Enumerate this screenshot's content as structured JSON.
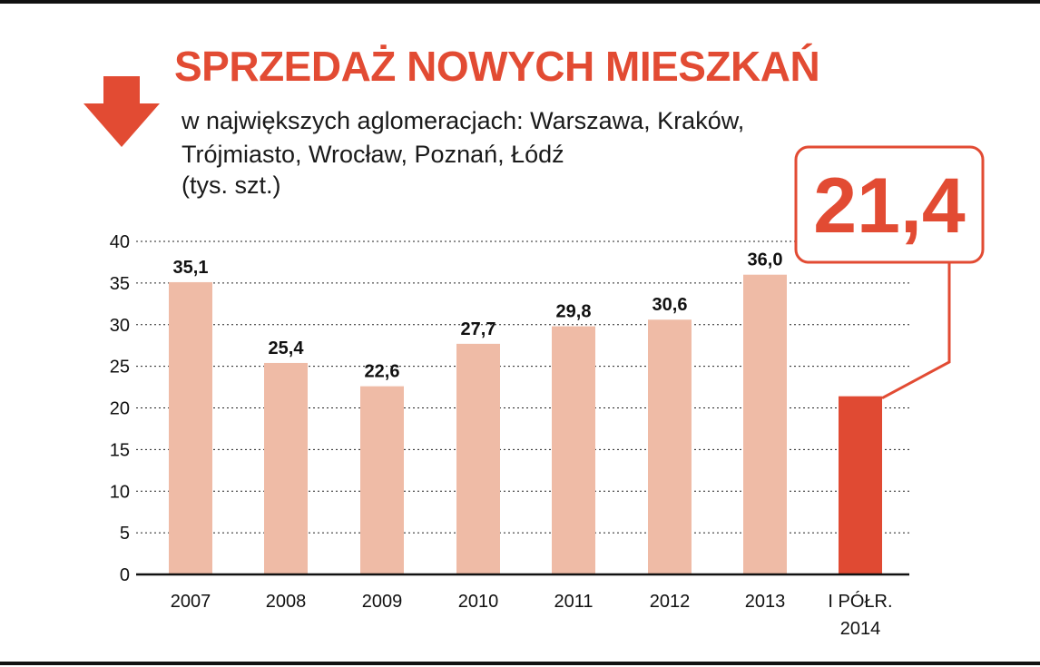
{
  "header": {
    "title": "SPRZEDAŻ NOWYCH MIESZKAŃ",
    "subtitle_lines": [
      "w największych aglomeracjach: Warszawa, Kraków,",
      "Trójmiasto, Wrocław, Poznań, Łódź",
      "(tys. szt.)"
    ],
    "arrow_icon": "arrow-down-icon"
  },
  "colors": {
    "accent": "#e24b33",
    "bar_light": "#efbba6",
    "bar_highlight": "#e04a33",
    "text": "#111111"
  },
  "chart_data": {
    "type": "bar",
    "categories": [
      "2007",
      "2008",
      "2009",
      "2010",
      "2011",
      "2012",
      "2013",
      "I PÓŁR.\n2014"
    ],
    "values": [
      35.1,
      25.4,
      22.6,
      27.7,
      29.8,
      30.6,
      36.0,
      21.4
    ],
    "value_labels": [
      "35,1",
      "25,4",
      "22,6",
      "27,7",
      "29,8",
      "30,6",
      "36,0",
      ""
    ],
    "highlight_index": 7,
    "callout": "21,4",
    "ylim": [
      0,
      40
    ],
    "yticks": [
      0,
      5,
      10,
      15,
      20,
      25,
      30,
      35,
      40
    ],
    "grid": "dotted horizontal",
    "xlabel": "",
    "ylabel": ""
  }
}
